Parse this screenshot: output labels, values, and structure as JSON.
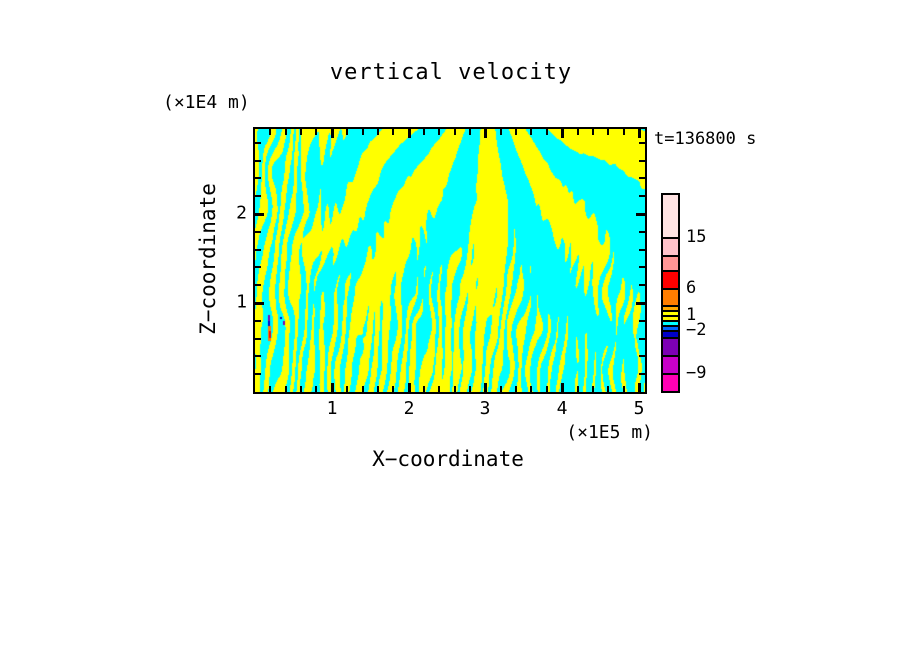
{
  "title": "vertical velocity",
  "annotations": {
    "time_label": "t=136800 s",
    "z_unit_label": "(×1E4 m)",
    "x_unit_label": "(×1E5 m)"
  },
  "axes": {
    "x_title": "X−coordinate",
    "z_title": "Z−coordinate",
    "x_tick_labels": [
      "1",
      "2",
      "3",
      "4",
      "5"
    ],
    "z_tick_labels": [
      "1",
      "2"
    ],
    "x_range": [
      0,
      5.08
    ],
    "z_range": [
      0,
      2.95
    ],
    "minor_tick_interval": 0.2
  },
  "chart_data": {
    "type": "heatmap",
    "title": "vertical velocity",
    "time_annotation": "t=136800 s",
    "xlabel": "X−coordinate",
    "x_unit": "(×1E5 m)",
    "x_range": [
      0,
      5.08
    ],
    "x_ticks_major": [
      1,
      2,
      3,
      4,
      5
    ],
    "zlabel": "Z−coordinate",
    "z_unit": "(×1E4 m)",
    "z_range": [
      0,
      2.95
    ],
    "z_ticks_major": [
      1,
      2
    ],
    "grid": false,
    "legend_position": "right-colorbar",
    "field_description": "Two-tone vertical-velocity cross-section: positive cells (level 0 to 1) rendered yellow, negative cells (level −1 to 0) rendered cyan. Fine vertical plume striations dominate near the bottom boundary and the left edge; broad smooth bands fan out diagonally from top-center (sloping / on the left half and \\ on the right half). A large yellow dome rises from bottom-center and a large cyan pool sits right of bottom-center. A few isolated extreme-value specks (orange/red positive, blue/purple negative) occur near x≈0.2×1E5 m, z≈0.6×1E4 m.",
    "positive_color": "#ffff00",
    "negative_color": "#00ffff",
    "specks": [
      {
        "x": 13,
        "y": 186,
        "w": 2,
        "h": 6,
        "color": "#7d00b4"
      },
      {
        "x": 13,
        "y": 192,
        "w": 2,
        "h": 5,
        "color": "#0000c8"
      },
      {
        "x": 13,
        "y": 197,
        "w": 3,
        "h": 15,
        "color": "#ff7d00"
      },
      {
        "x": 14,
        "y": 202,
        "w": 2,
        "h": 7,
        "color": "#ff0000"
      },
      {
        "x": 28,
        "y": 192,
        "w": 2,
        "h": 4,
        "color": "#7d00b4"
      },
      {
        "x": 25,
        "y": 188,
        "w": 2,
        "h": 2,
        "color": "#0000c8"
      }
    ],
    "colorbar": {
      "segments": [
        {
          "color": "#ffe3e3",
          "h": 42
        },
        {
          "color": "#ffc2ca",
          "h": 18
        },
        {
          "color": "#ff9595",
          "h": 15
        },
        {
          "color": "#ff0000",
          "h": 18
        },
        {
          "color": "#ff7d00",
          "h": 17
        },
        {
          "color": "#ffa800",
          "h": 5
        },
        {
          "color": "#ffff00",
          "h": 5
        },
        {
          "color": "#fff600",
          "h": 5
        },
        {
          "color": "#00ffff",
          "h": 5
        },
        {
          "color": "#0066ff",
          "h": 5
        },
        {
          "color": "#0000c8",
          "h": 7
        },
        {
          "color": "#7d00b4",
          "h": 18
        },
        {
          "color": "#c800c8",
          "h": 18
        },
        {
          "color": "#ff00b4",
          "h": 18
        }
      ],
      "labels": [
        {
          "text": "15",
          "after": 0
        },
        {
          "text": "6",
          "after": 3
        },
        {
          "text": "1",
          "after": 6
        },
        {
          "text": "−2",
          "after": 9
        },
        {
          "text": "−9",
          "after": 12
        }
      ]
    }
  }
}
